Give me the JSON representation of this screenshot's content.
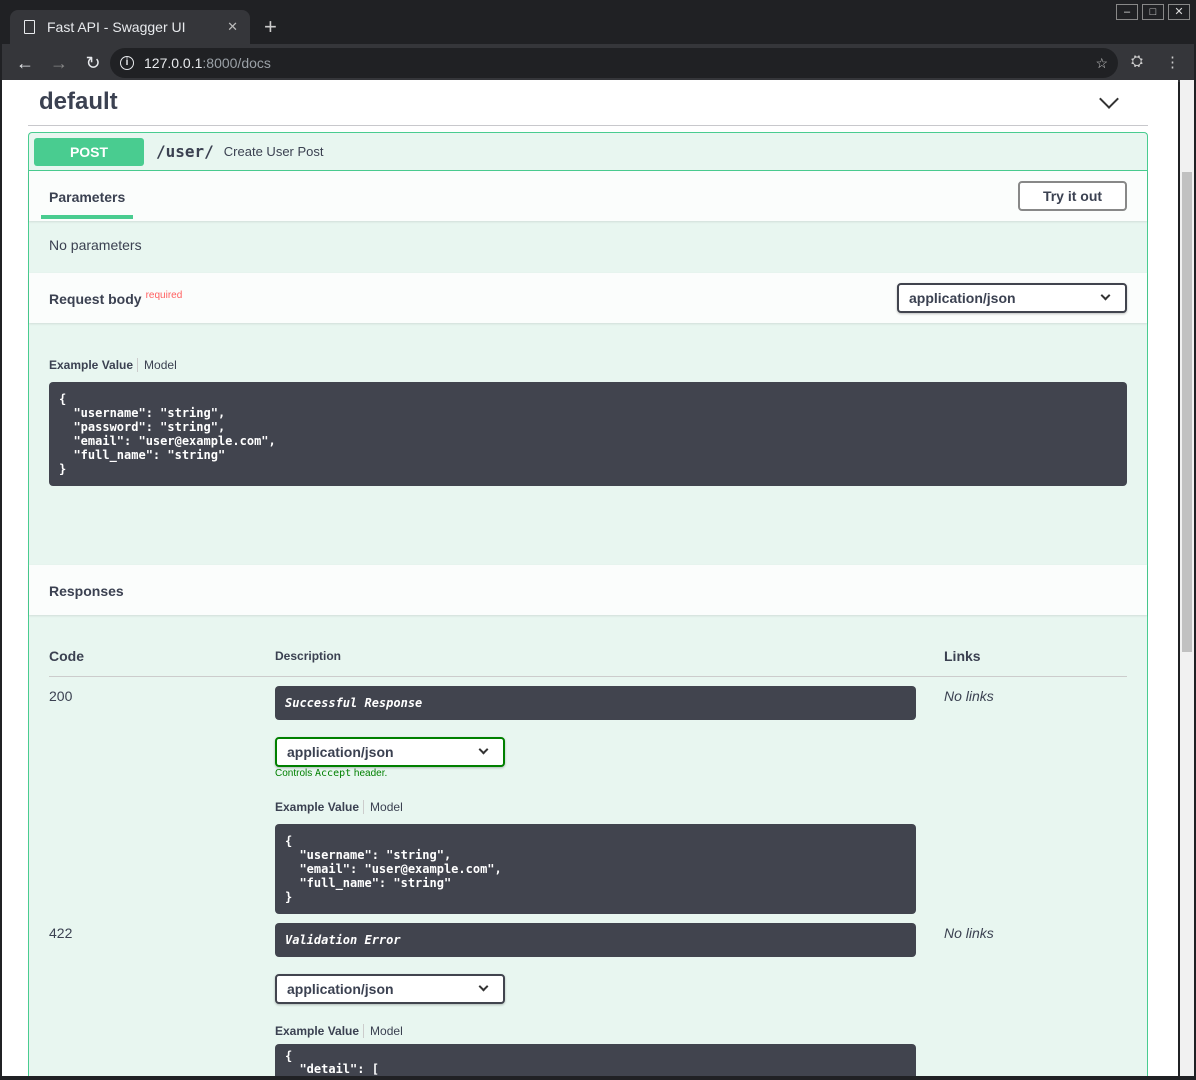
{
  "browser": {
    "tab_title": "Fast API - Swagger UI",
    "url_host": "127.0.0.1",
    "url_rest": ":8000/docs"
  },
  "section": {
    "title": "default"
  },
  "operation": {
    "method": "POST",
    "path": "/user/",
    "summary": "Create User Post",
    "parameters_tab": "Parameters",
    "try_it_out": "Try it out",
    "no_parameters": "No parameters",
    "request_body_label": "Request body",
    "required": "required",
    "content_type": "application/json",
    "example_value": "Example Value",
    "model": "Model",
    "request_example": "{\n  \"username\": \"string\",\n  \"password\": \"string\",\n  \"email\": \"user@example.com\",\n  \"full_name\": \"string\"\n}"
  },
  "responses": {
    "title": "Responses",
    "headers": {
      "code": "Code",
      "description": "Description",
      "links": "Links"
    },
    "items": [
      {
        "code": "200",
        "description": "Successful Response",
        "media_type": "application/json",
        "controls_prefix": "Controls ",
        "controls_code": "Accept",
        "controls_suffix": " header.",
        "example": "{\n  \"username\": \"string\",\n  \"email\": \"user@example.com\",\n  \"full_name\": \"string\"\n}",
        "links": "No links"
      },
      {
        "code": "422",
        "description": "Validation Error",
        "media_type": "application/json",
        "example": "{\n  \"detail\": [",
        "links": "No links"
      }
    ]
  }
}
